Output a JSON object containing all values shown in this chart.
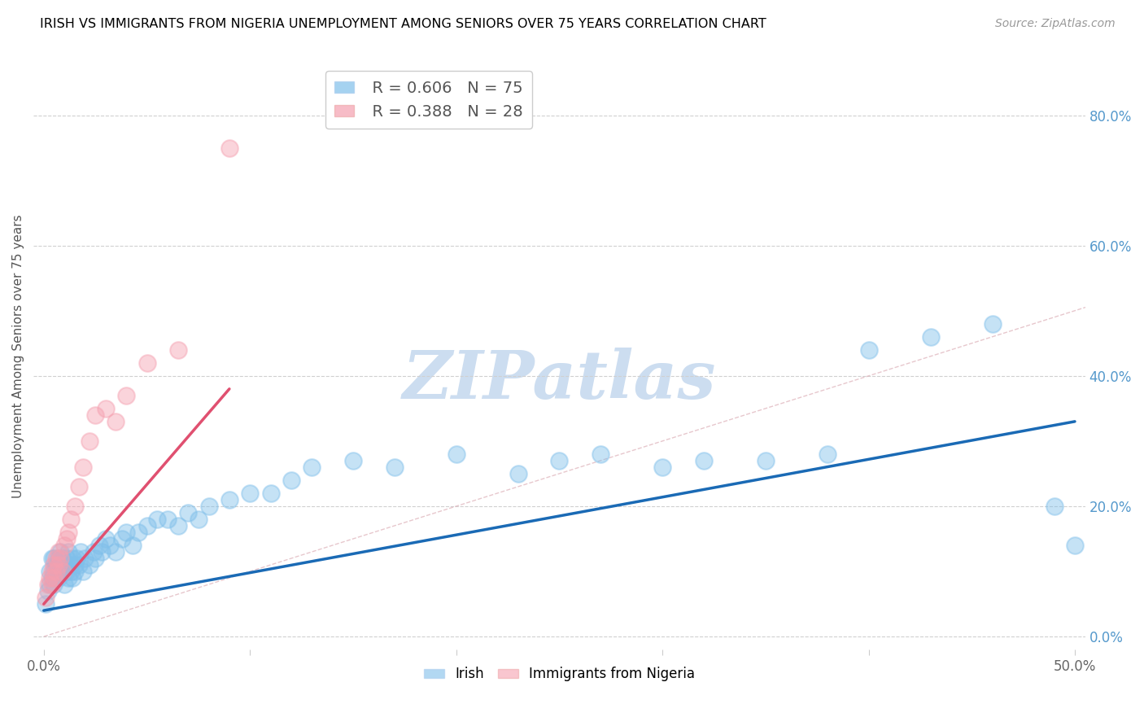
{
  "title": "IRISH VS IMMIGRANTS FROM NIGERIA UNEMPLOYMENT AMONG SENIORS OVER 75 YEARS CORRELATION CHART",
  "source": "Source: ZipAtlas.com",
  "ylabel": "Unemployment Among Seniors over 75 years",
  "xlim": [
    -0.005,
    0.505
  ],
  "ylim": [
    -0.02,
    0.88
  ],
  "xticks": [
    0.0,
    0.1,
    0.2,
    0.3,
    0.4,
    0.5
  ],
  "xtick_labels": [
    "0.0%",
    "",
    "",
    "",
    "",
    "50.0%"
  ],
  "yticks_right": [
    0.0,
    0.2,
    0.4,
    0.6,
    0.8
  ],
  "ytick_labels_right": [
    "0.0%",
    "20.0%",
    "40.0%",
    "60.0%",
    "80.0%"
  ],
  "irish_R": 0.606,
  "irish_N": 75,
  "nigeria_R": 0.388,
  "nigeria_N": 28,
  "irish_color": "#7fbfea",
  "nigeria_color": "#f5a0b0",
  "irish_line_color": "#1a6ab5",
  "nigeria_line_color": "#e05070",
  "watermark": "ZIPatlas",
  "watermark_color": "#ccddf0",
  "irish_x": [
    0.001,
    0.002,
    0.003,
    0.003,
    0.004,
    0.004,
    0.005,
    0.005,
    0.005,
    0.006,
    0.006,
    0.007,
    0.007,
    0.007,
    0.008,
    0.008,
    0.009,
    0.009,
    0.01,
    0.01,
    0.01,
    0.011,
    0.011,
    0.012,
    0.012,
    0.013,
    0.013,
    0.014,
    0.014,
    0.015,
    0.015,
    0.016,
    0.017,
    0.018,
    0.019,
    0.02,
    0.022,
    0.024,
    0.025,
    0.027,
    0.028,
    0.03,
    0.032,
    0.035,
    0.038,
    0.04,
    0.043,
    0.046,
    0.05,
    0.055,
    0.06,
    0.065,
    0.07,
    0.075,
    0.08,
    0.09,
    0.1,
    0.11,
    0.12,
    0.13,
    0.15,
    0.17,
    0.2,
    0.23,
    0.25,
    0.27,
    0.3,
    0.32,
    0.35,
    0.38,
    0.4,
    0.43,
    0.46,
    0.49,
    0.5
  ],
  "irish_y": [
    0.05,
    0.07,
    0.08,
    0.1,
    0.09,
    0.12,
    0.1,
    0.08,
    0.12,
    0.09,
    0.11,
    0.1,
    0.12,
    0.09,
    0.11,
    0.13,
    0.1,
    0.12,
    0.1,
    0.08,
    0.11,
    0.12,
    0.1,
    0.09,
    0.13,
    0.11,
    0.1,
    0.12,
    0.09,
    0.11,
    0.1,
    0.12,
    0.11,
    0.13,
    0.1,
    0.12,
    0.11,
    0.13,
    0.12,
    0.14,
    0.13,
    0.15,
    0.14,
    0.13,
    0.15,
    0.16,
    0.14,
    0.16,
    0.17,
    0.18,
    0.18,
    0.17,
    0.19,
    0.18,
    0.2,
    0.21,
    0.22,
    0.22,
    0.24,
    0.26,
    0.27,
    0.26,
    0.28,
    0.25,
    0.27,
    0.28,
    0.26,
    0.27,
    0.27,
    0.28,
    0.44,
    0.46,
    0.48,
    0.2,
    0.14
  ],
  "nigeria_x": [
    0.001,
    0.002,
    0.003,
    0.004,
    0.004,
    0.005,
    0.005,
    0.006,
    0.006,
    0.007,
    0.007,
    0.008,
    0.009,
    0.01,
    0.011,
    0.012,
    0.013,
    0.015,
    0.017,
    0.019,
    0.022,
    0.025,
    0.03,
    0.035,
    0.04,
    0.05,
    0.065,
    0.09
  ],
  "nigeria_y": [
    0.06,
    0.08,
    0.09,
    0.1,
    0.08,
    0.11,
    0.09,
    0.12,
    0.1,
    0.11,
    0.13,
    0.12,
    0.1,
    0.14,
    0.15,
    0.16,
    0.18,
    0.2,
    0.23,
    0.26,
    0.3,
    0.34,
    0.35,
    0.33,
    0.37,
    0.42,
    0.44,
    0.75
  ],
  "irish_line_x": [
    0.0,
    0.5
  ],
  "irish_line_y": [
    0.04,
    0.33
  ],
  "nigeria_line_x": [
    0.0,
    0.09
  ],
  "nigeria_line_y": [
    0.05,
    0.38
  ]
}
